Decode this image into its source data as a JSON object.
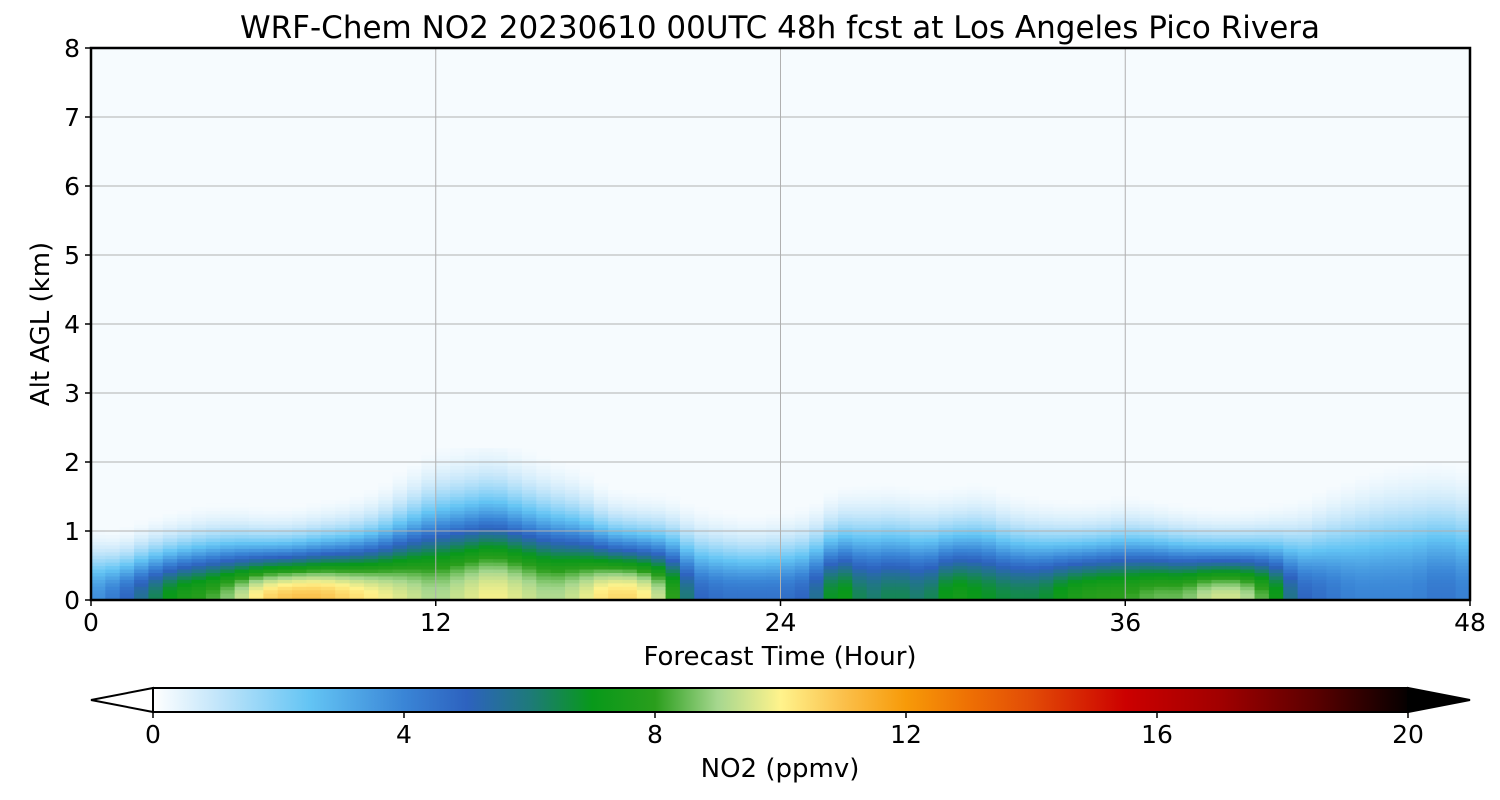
{
  "chart_data": {
    "type": "heatmap",
    "title": "WRF-Chem NO2  20230610 00UTC 48h fcst at Los Angeles Pico Rivera",
    "xlabel": "Forecast Time (Hour)",
    "ylabel": "Alt AGL (km)",
    "xlim": [
      0,
      48
    ],
    "ylim": [
      0,
      8
    ],
    "x_ticks": [
      0,
      12,
      24,
      36,
      48
    ],
    "y_ticks": [
      0,
      1,
      2,
      3,
      4,
      5,
      6,
      7,
      8
    ],
    "grid": true,
    "colorbar": {
      "label": "NO2  (ppmv)",
      "range": [
        0,
        20
      ],
      "ticks": [
        0,
        4,
        8,
        12,
        16,
        20
      ],
      "extend": "both",
      "color_stops": [
        {
          "v": 0,
          "c": "#ffffff"
        },
        {
          "v": 1,
          "c": "#c4e6fa"
        },
        {
          "v": 2.5,
          "c": "#63c4f4"
        },
        {
          "v": 4,
          "c": "#3a85d6"
        },
        {
          "v": 5,
          "c": "#2d62bf"
        },
        {
          "v": 6,
          "c": "#1e7a7a"
        },
        {
          "v": 7,
          "c": "#08991a"
        },
        {
          "v": 8,
          "c": "#2a9e1c"
        },
        {
          "v": 9,
          "c": "#a6d78f"
        },
        {
          "v": 10,
          "c": "#fff38c"
        },
        {
          "v": 11,
          "c": "#fbc04b"
        },
        {
          "v": 12,
          "c": "#f79a08"
        },
        {
          "v": 13,
          "c": "#ee7004"
        },
        {
          "v": 14,
          "c": "#e24b06"
        },
        {
          "v": 15.5,
          "c": "#cc0000"
        },
        {
          "v": 17,
          "c": "#a10000"
        },
        {
          "v": 18.5,
          "c": "#5c0000"
        },
        {
          "v": 20,
          "c": "#050000"
        }
      ]
    },
    "field_profiles": {
      "description_units": "hour -> NO2 (ppmv) at surface and depth of polluted layer (km)",
      "hours": [
        0,
        1,
        2,
        3,
        4,
        5,
        6,
        7,
        8,
        9,
        10,
        11,
        12,
        13,
        14,
        15,
        16,
        17,
        18,
        19,
        20,
        21,
        22,
        23,
        24,
        25,
        26,
        27,
        28,
        29,
        30,
        31,
        32,
        33,
        34,
        35,
        36,
        37,
        38,
        39,
        40,
        41,
        42,
        43,
        44,
        45,
        46,
        47,
        48
      ],
      "surface": [
        3.5,
        4.5,
        6,
        7.5,
        8,
        9,
        10.5,
        11,
        11,
        10.5,
        10,
        9.5,
        9,
        9.5,
        10,
        9.5,
        9,
        9.5,
        10.5,
        10.5,
        9,
        5,
        4.5,
        4.5,
        4.5,
        5,
        7.5,
        6,
        6.5,
        6,
        7.5,
        7,
        6.5,
        6.5,
        7.5,
        8,
        8,
        8.5,
        8.5,
        9.5,
        9.5,
        8,
        5,
        4.5,
        4,
        4,
        4,
        4.5,
        4
      ],
      "depth": [
        0.8,
        0.75,
        0.85,
        0.9,
        0.95,
        0.95,
        0.9,
        0.9,
        0.95,
        1.0,
        1.1,
        1.3,
        1.5,
        1.55,
        1.6,
        1.5,
        1.4,
        1.3,
        1.1,
        1.05,
        1.05,
        1.0,
        0.95,
        0.9,
        0.95,
        1.0,
        1.15,
        1.2,
        1.2,
        1.15,
        1.15,
        1.2,
        1.1,
        1.05,
        1.0,
        1.0,
        1.05,
        1.0,
        0.95,
        0.9,
        0.9,
        0.95,
        1.05,
        1.2,
        1.35,
        1.45,
        1.5,
        1.5,
        1.45
      ]
    }
  }
}
